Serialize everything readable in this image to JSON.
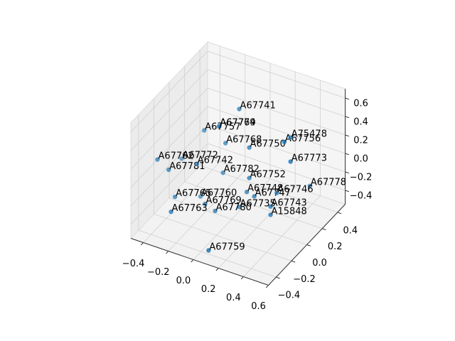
{
  "chart_data": {
    "type": "scatter3d",
    "labels": [
      "A67741",
      "A67764",
      "A67779",
      "A67757",
      "A67768",
      "A67750",
      "A67756",
      "A75478",
      "A67773",
      "A67762",
      "A67772",
      "A67781",
      "A67742",
      "A67782",
      "A67752",
      "A67778",
      "A67748",
      "A67765",
      "A67760",
      "A67747",
      "A67746",
      "A67769",
      "A67735",
      "A67743",
      "A67780",
      "A67763",
      "A15848",
      "A67759"
    ],
    "x": [
      0.06,
      -0.1,
      -0.1,
      -0.22,
      -0.05,
      0.14,
      0.42,
      0.47,
      0.47,
      -0.41,
      -0.4,
      -0.32,
      -0.28,
      -0.07,
      0.14,
      0.44,
      0.12,
      -0.27,
      -0.25,
      0.18,
      0.36,
      -0.09,
      0.06,
      0.31,
      -0.01,
      -0.24,
      0.31,
      0.06
    ],
    "y": [
      0,
      0,
      0,
      0,
      0,
      0,
      0,
      0,
      0,
      -0.3,
      0,
      -0.3,
      0,
      0,
      0,
      0.3,
      0,
      -0.3,
      0,
      0,
      0,
      -0.2,
      0,
      0,
      -0.2,
      -0.4,
      0,
      -0.4
    ],
    "z": [
      0.67,
      0.41,
      0.41,
      0.31,
      0.25,
      0.29,
      0.48,
      0.55,
      0.29,
      0.17,
      -0.08,
      0.1,
      -0.08,
      -0.08,
      -0.04,
      -0.25,
      -0.2,
      -0.17,
      -0.42,
      -0.22,
      -0.1,
      -0.25,
      -0.39,
      -0.27,
      -0.29,
      -0.23,
      -0.36,
      -0.51
    ],
    "color": "#1f77b4",
    "xlim": [
      -0.5,
      0.6
    ],
    "ylim": [
      -0.5,
      0.5
    ],
    "zlim": [
      -0.55,
      0.7
    ],
    "xticks": [
      {
        "value": -0.4,
        "label": "−0.4"
      },
      {
        "value": -0.2,
        "label": "−0.2"
      },
      {
        "value": 0,
        "label": "0.0"
      },
      0.2,
      0.4,
      0.6
    ],
    "yticks": [
      {
        "value": -0.4,
        "label": "−0.4"
      },
      {
        "value": -0.2,
        "label": "−0.2"
      },
      {
        "value": 0,
        "label": "0.0"
      },
      0.2,
      0.4
    ],
    "zticks": [
      {
        "value": -0.4,
        "label": "−0.4"
      },
      {
        "value": -0.2,
        "label": "−0.2"
      },
      {
        "value": 0,
        "label": "0.0"
      },
      0.2,
      0.4,
      0.6
    ],
    "grid": true
  }
}
